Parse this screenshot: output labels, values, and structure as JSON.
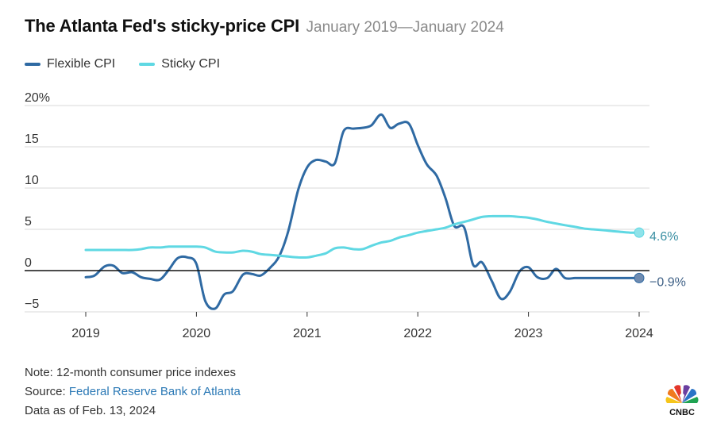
{
  "header": {
    "title": "The Atlanta Fed's sticky-price CPI",
    "subtitle": "January 2019—January 2024"
  },
  "legend": {
    "flexible_label": "Flexible CPI",
    "sticky_label": "Sticky CPI"
  },
  "colors": {
    "flexible": "#2f6aa3",
    "sticky": "#5fd8e3",
    "grid": "#d9d9d9",
    "zero_line": "#111111"
  },
  "chart_data": {
    "type": "line",
    "title": "The Atlanta Fed's sticky-price CPI",
    "subtitle": "January 2019—January 2024",
    "xlabel": "",
    "ylabel": "",
    "xlim": [
      2019,
      2024
    ],
    "ylim": [
      -5,
      20
    ],
    "x_ticks": [
      2019,
      2020,
      2021,
      2022,
      2023,
      2024
    ],
    "x_tick_labels": [
      "2019",
      "2020",
      "2021",
      "2022",
      "2023",
      "2024"
    ],
    "y_ticks": [
      20,
      15,
      10,
      5,
      0,
      -5
    ],
    "y_tick_labels": [
      "20%",
      "15",
      "10",
      "5",
      "0",
      "−5"
    ],
    "legend_position": "top-left",
    "series": [
      {
        "name": "Flexible CPI",
        "end_label": "−0.9%",
        "x": [
          2019.0,
          2019.08,
          2019.17,
          2019.25,
          2019.33,
          2019.42,
          2019.5,
          2019.58,
          2019.67,
          2019.75,
          2019.83,
          2019.92,
          2020.0,
          2020.08,
          2020.17,
          2020.25,
          2020.33,
          2020.42,
          2020.5,
          2020.58,
          2020.67,
          2020.75,
          2020.83,
          2020.92,
          2021.0,
          2021.08,
          2021.17,
          2021.25,
          2021.33,
          2021.42,
          2021.5,
          2021.58,
          2021.67,
          2021.75,
          2021.83,
          2021.92,
          2022.0,
          2022.08,
          2022.17,
          2022.25,
          2022.33,
          2022.42,
          2022.5,
          2022.58,
          2022.67,
          2022.75,
          2022.83,
          2022.92,
          2023.0,
          2023.08,
          2023.17,
          2023.25,
          2023.33,
          2023.42,
          2023.5,
          2023.58,
          2023.67,
          2023.75,
          2023.83,
          2023.92,
          2024.0
        ],
        "values": [
          -0.8,
          -0.6,
          0.5,
          0.6,
          -0.3,
          -0.2,
          -0.8,
          -1.0,
          -1.1,
          0.1,
          1.5,
          1.6,
          0.8,
          -3.7,
          -4.6,
          -2.9,
          -2.5,
          -0.5,
          -0.4,
          -0.6,
          0.4,
          1.8,
          4.8,
          9.8,
          12.5,
          13.4,
          13.2,
          13.0,
          16.9,
          17.2,
          17.3,
          17.6,
          18.9,
          17.3,
          17.8,
          17.8,
          15.2,
          12.9,
          11.5,
          8.8,
          5.4,
          5.2,
          0.7,
          1.0,
          -1.3,
          -3.4,
          -2.6,
          -0.1,
          0.4,
          -0.8,
          -0.9,
          0.2,
          -0.9,
          -0.9,
          -0.9,
          -0.9,
          -0.9,
          -0.9,
          -0.9,
          -0.9,
          -0.9
        ]
      },
      {
        "name": "Sticky CPI",
        "end_label": "4.6%",
        "x": [
          2019.0,
          2019.08,
          2019.17,
          2019.25,
          2019.33,
          2019.42,
          2019.5,
          2019.58,
          2019.67,
          2019.75,
          2019.83,
          2019.92,
          2020.0,
          2020.08,
          2020.17,
          2020.25,
          2020.33,
          2020.42,
          2020.5,
          2020.58,
          2020.67,
          2020.75,
          2020.83,
          2020.92,
          2021.0,
          2021.08,
          2021.17,
          2021.25,
          2021.33,
          2021.42,
          2021.5,
          2021.58,
          2021.67,
          2021.75,
          2021.83,
          2021.92,
          2022.0,
          2022.08,
          2022.17,
          2022.25,
          2022.33,
          2022.42,
          2022.5,
          2022.58,
          2022.67,
          2022.75,
          2022.83,
          2022.92,
          2023.0,
          2023.08,
          2023.17,
          2023.25,
          2023.33,
          2023.42,
          2023.5,
          2023.58,
          2023.67,
          2023.75,
          2023.83,
          2023.92,
          2024.0
        ],
        "values": [
          2.5,
          2.5,
          2.5,
          2.5,
          2.5,
          2.5,
          2.6,
          2.8,
          2.8,
          2.9,
          2.9,
          2.9,
          2.9,
          2.8,
          2.3,
          2.2,
          2.2,
          2.4,
          2.3,
          2.0,
          1.9,
          1.8,
          1.7,
          1.6,
          1.6,
          1.8,
          2.1,
          2.7,
          2.8,
          2.6,
          2.6,
          3.0,
          3.4,
          3.6,
          4.0,
          4.3,
          4.6,
          4.8,
          5.0,
          5.2,
          5.6,
          5.9,
          6.2,
          6.5,
          6.6,
          6.6,
          6.6,
          6.5,
          6.4,
          6.2,
          5.9,
          5.7,
          5.5,
          5.3,
          5.1,
          5.0,
          4.9,
          4.8,
          4.7,
          4.6,
          4.6
        ]
      }
    ]
  },
  "notes": {
    "note": "Note: 12-month consumer price indexes",
    "source_prefix": "Source: ",
    "source_link": "Federal Reserve Bank of Atlanta",
    "data_as_of": "Data as of Feb. 13, 2024"
  },
  "logo": {
    "text": "CNBC"
  }
}
